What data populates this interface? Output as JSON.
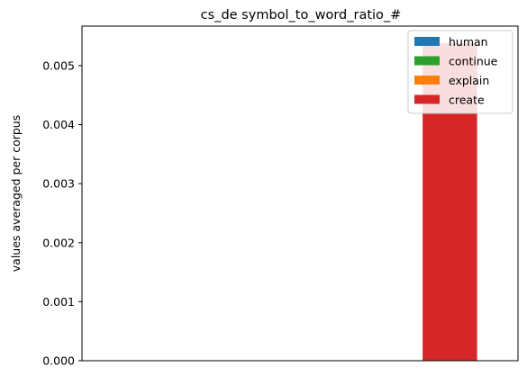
{
  "chart_data": {
    "type": "bar",
    "title": "cs_de symbol_to_word_ratio_#",
    "xlabel": "",
    "ylabel": "values averaged per corpus",
    "ylim": [
      0,
      0.00567
    ],
    "yticks": [
      "0.000",
      "0.001",
      "0.002",
      "0.003",
      "0.004",
      "0.005"
    ],
    "grid": false,
    "legend_position": "top-right",
    "series": [
      {
        "name": "human",
        "color": "#1f77b4",
        "value": 0
      },
      {
        "name": "continue",
        "color": "#2ca02c",
        "value": 0
      },
      {
        "name": "explain",
        "color": "#ff7f0e",
        "value": 0
      },
      {
        "name": "create",
        "color": "#d62728",
        "value": 0.00538
      }
    ]
  }
}
